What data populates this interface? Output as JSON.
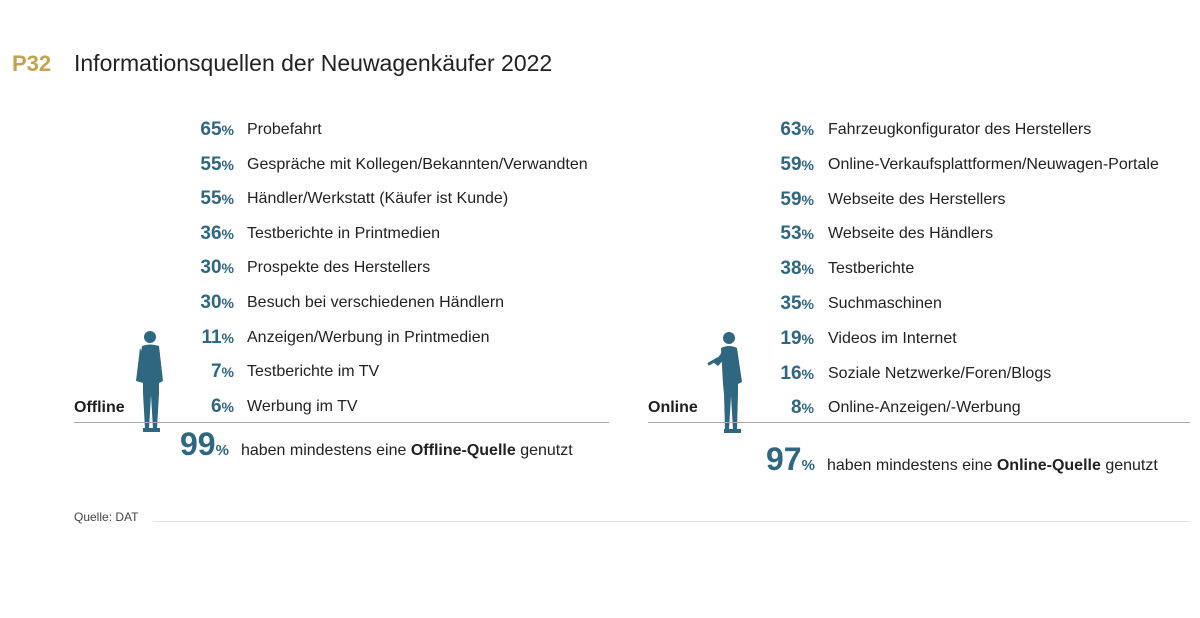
{
  "header": {
    "code": "P32",
    "title": "Informationsquellen der Neuwagenkäufer 2022"
  },
  "colors": {
    "accent": "#2f6680",
    "code": "#c4a24e"
  },
  "icons": {
    "offline": "standing-person-icon",
    "online": "person-with-tablet-icon"
  },
  "chart_data": [
    {
      "type": "table",
      "group_label": "Offline",
      "rows": [
        {
          "value": 65,
          "label": "Probefahrt"
        },
        {
          "value": 55,
          "label": "Gespräche mit Kollegen/Bekannten/Verwandten"
        },
        {
          "value": 55,
          "label": "Händler/Werkstatt (Käufer ist Kunde)"
        },
        {
          "value": 36,
          "label": "Testberichte in Printmedien"
        },
        {
          "value": 30,
          "label": "Prospekte des Herstellers"
        },
        {
          "value": 30,
          "label": "Besuch bei verschiedenen Händlern"
        },
        {
          "value": 11,
          "label": "Anzeigen/Werbung in Printmedien"
        },
        {
          "value": 7,
          "label": "Testberichte im TV"
        },
        {
          "value": 6,
          "label": "Werbung im TV"
        }
      ],
      "total": {
        "value": 99,
        "text_before": "haben mindestens eine",
        "text_bold": "Offline-Quelle",
        "text_after": "genutzt"
      }
    },
    {
      "type": "table",
      "group_label": "Online",
      "rows": [
        {
          "value": 63,
          "label": "Fahrzeugkonfigurator des Herstellers"
        },
        {
          "value": 59,
          "label": "Online-Verkaufsplattformen/Neuwagen-Portale"
        },
        {
          "value": 59,
          "label": "Webseite des Herstellers"
        },
        {
          "value": 53,
          "label": "Webseite des Händlers"
        },
        {
          "value": 38,
          "label": "Testberichte"
        },
        {
          "value": 35,
          "label": "Suchmaschinen"
        },
        {
          "value": 19,
          "label": "Videos im Internet"
        },
        {
          "value": 16,
          "label": "Soziale Netzwerke/Foren/Blogs"
        },
        {
          "value": 8,
          "label": "Online-Anzeigen/-Werbung"
        }
      ],
      "total": {
        "value": 97,
        "text_before": "haben mindestens eine",
        "text_bold": "Online-Quelle",
        "text_after": "genutzt"
      }
    }
  ],
  "unit": "%",
  "source": "Quelle: DAT"
}
